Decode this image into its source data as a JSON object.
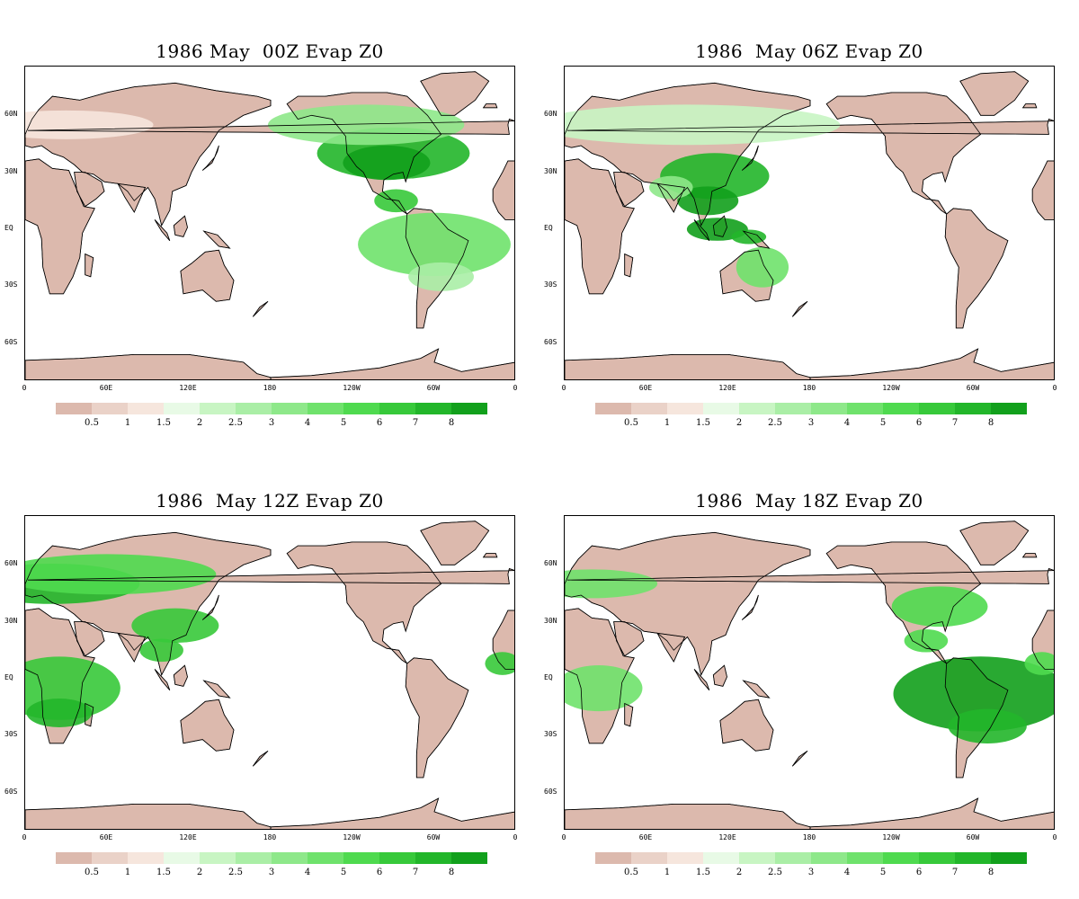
{
  "panels": [
    {
      "title": "1986 May  00Z Evap Z0",
      "peak": "americas"
    },
    {
      "title": "1986  May 06Z Evap Z0",
      "peak": "asia"
    },
    {
      "title": "1986  May 12Z Evap Z0",
      "peak": "eurasia-africa"
    },
    {
      "title": "1986  May 18Z Evap Z0",
      "peak": "americas-south"
    }
  ],
  "lat_labels": [
    "60N",
    "30N",
    "EQ",
    "30S",
    "60S"
  ],
  "lon_labels": [
    "0",
    "60E",
    "120E",
    "180",
    "120W",
    "60W",
    "0"
  ],
  "colorbar": {
    "labels": [
      "0.5",
      "1",
      "1.5",
      "2",
      "2.5",
      "3",
      "4",
      "5",
      "6",
      "7",
      "8"
    ],
    "colors": [
      "#dcb9ad",
      "#ead2c8",
      "#f6e6dd",
      "#e8fae6",
      "#c8f5c3",
      "#aaeea6",
      "#8ee88a",
      "#6fe26c",
      "#4fda4f",
      "#37c93a",
      "#22b62a",
      "#12a01c"
    ]
  }
}
